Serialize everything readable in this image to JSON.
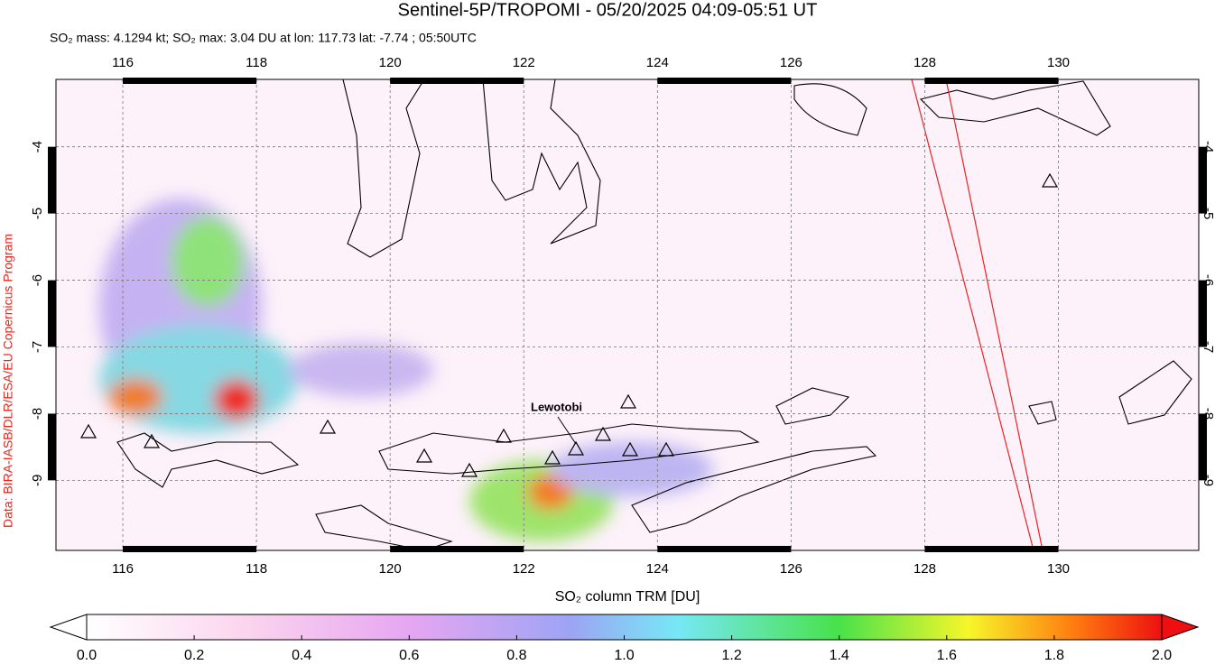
{
  "header": {
    "title": "Sentinel-5P/TROPOMI - 05/20/2025 04:09-05:51 UT",
    "subtitle": "SO₂ mass: 4.1294 kt; SO₂ max: 3.04 DU at lon: 117.73 lat: -7.74 ; 05:50UTC"
  },
  "credit": "Data: BIRA-IASB/DLR/ESA/EU Copernicus Program",
  "map": {
    "xlim": [
      115,
      132.1
    ],
    "ylim": [
      -10.05,
      -2.99
    ],
    "xticks": [
      116,
      118,
      120,
      122,
      124,
      126,
      128,
      130
    ],
    "yticks": [
      -4,
      -5,
      -6,
      -7,
      -8,
      -9
    ],
    "volcano_label": "Lewotobi"
  },
  "colorbar": {
    "label": "SO₂ column TRM [DU]",
    "lim": [
      0,
      2
    ],
    "ticks": [
      {
        "value": 0,
        "label": "0.0"
      },
      {
        "value": 0.2,
        "label": "0.2"
      },
      {
        "value": 0.4,
        "label": "0.4"
      },
      {
        "value": 0.6,
        "label": "0.6"
      },
      {
        "value": 0.8,
        "label": "0.8"
      },
      {
        "value": 1,
        "label": "1.0"
      },
      {
        "value": 1.2,
        "label": "1.2"
      },
      {
        "value": 1.4,
        "label": "1.4"
      },
      {
        "value": 1.6,
        "label": "1.6"
      },
      {
        "value": 1.8,
        "label": "1.8"
      },
      {
        "value": 2,
        "label": "2.0"
      }
    ]
  }
}
